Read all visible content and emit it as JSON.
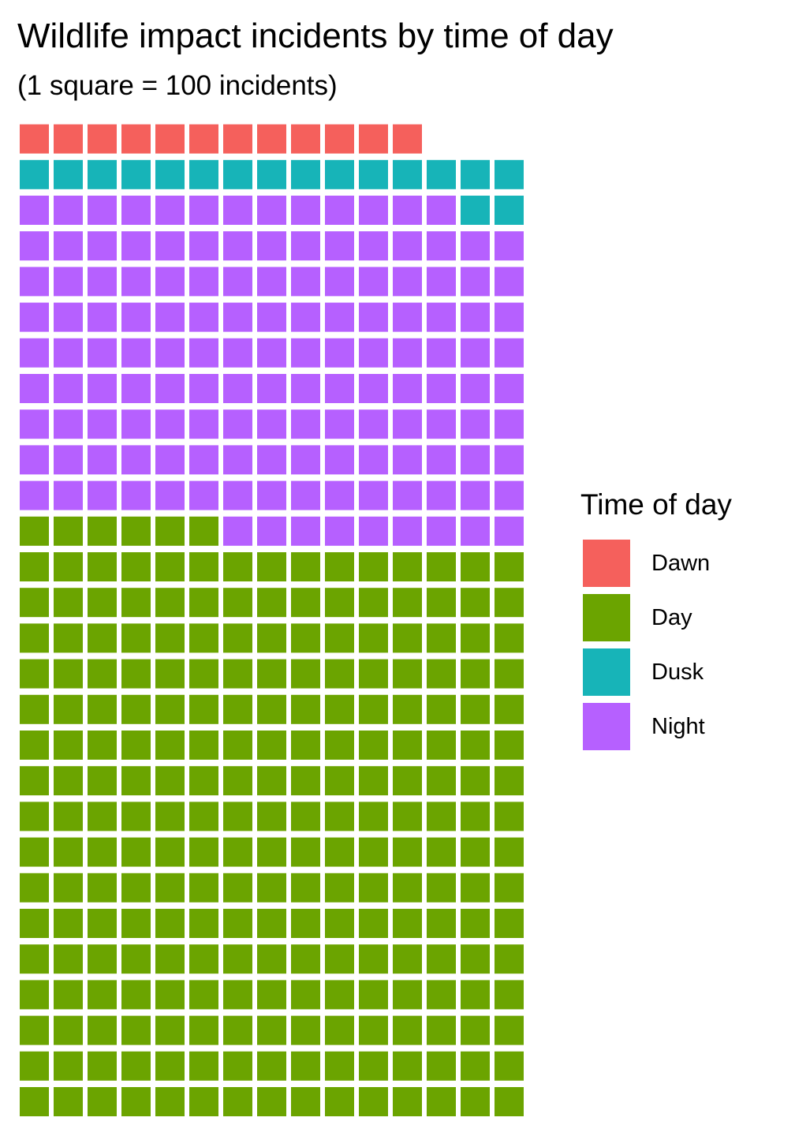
{
  "chart_data": {
    "type": "waffle",
    "title": "Wildlife impact incidents by time of day",
    "subtitle": "(1 square = 100 incidents)",
    "unit_per_square": 100,
    "columns": 15,
    "fill_order": "left-to-right, bottom-to-top",
    "categories": [
      "Day",
      "Night",
      "Dusk",
      "Dawn"
    ],
    "series": [
      {
        "name": "Day",
        "squares": 246,
        "value": 24600,
        "color": "#6BA400"
      },
      {
        "name": "Night",
        "squares": 142,
        "value": 14200,
        "color": "#B660FF"
      },
      {
        "name": "Dusk",
        "squares": 17,
        "value": 1700,
        "color": "#17B4B8"
      },
      {
        "name": "Dawn",
        "squares": 12,
        "value": 1200,
        "color": "#F5605C"
      }
    ],
    "legend": {
      "title": "Time of day",
      "position": "right",
      "entries": [
        {
          "label": "Dawn",
          "color": "#F5605C"
        },
        {
          "label": "Day",
          "color": "#6BA400"
        },
        {
          "label": "Dusk",
          "color": "#17B4B8"
        },
        {
          "label": "Night",
          "color": "#B660FF"
        }
      ]
    },
    "grid": false
  }
}
